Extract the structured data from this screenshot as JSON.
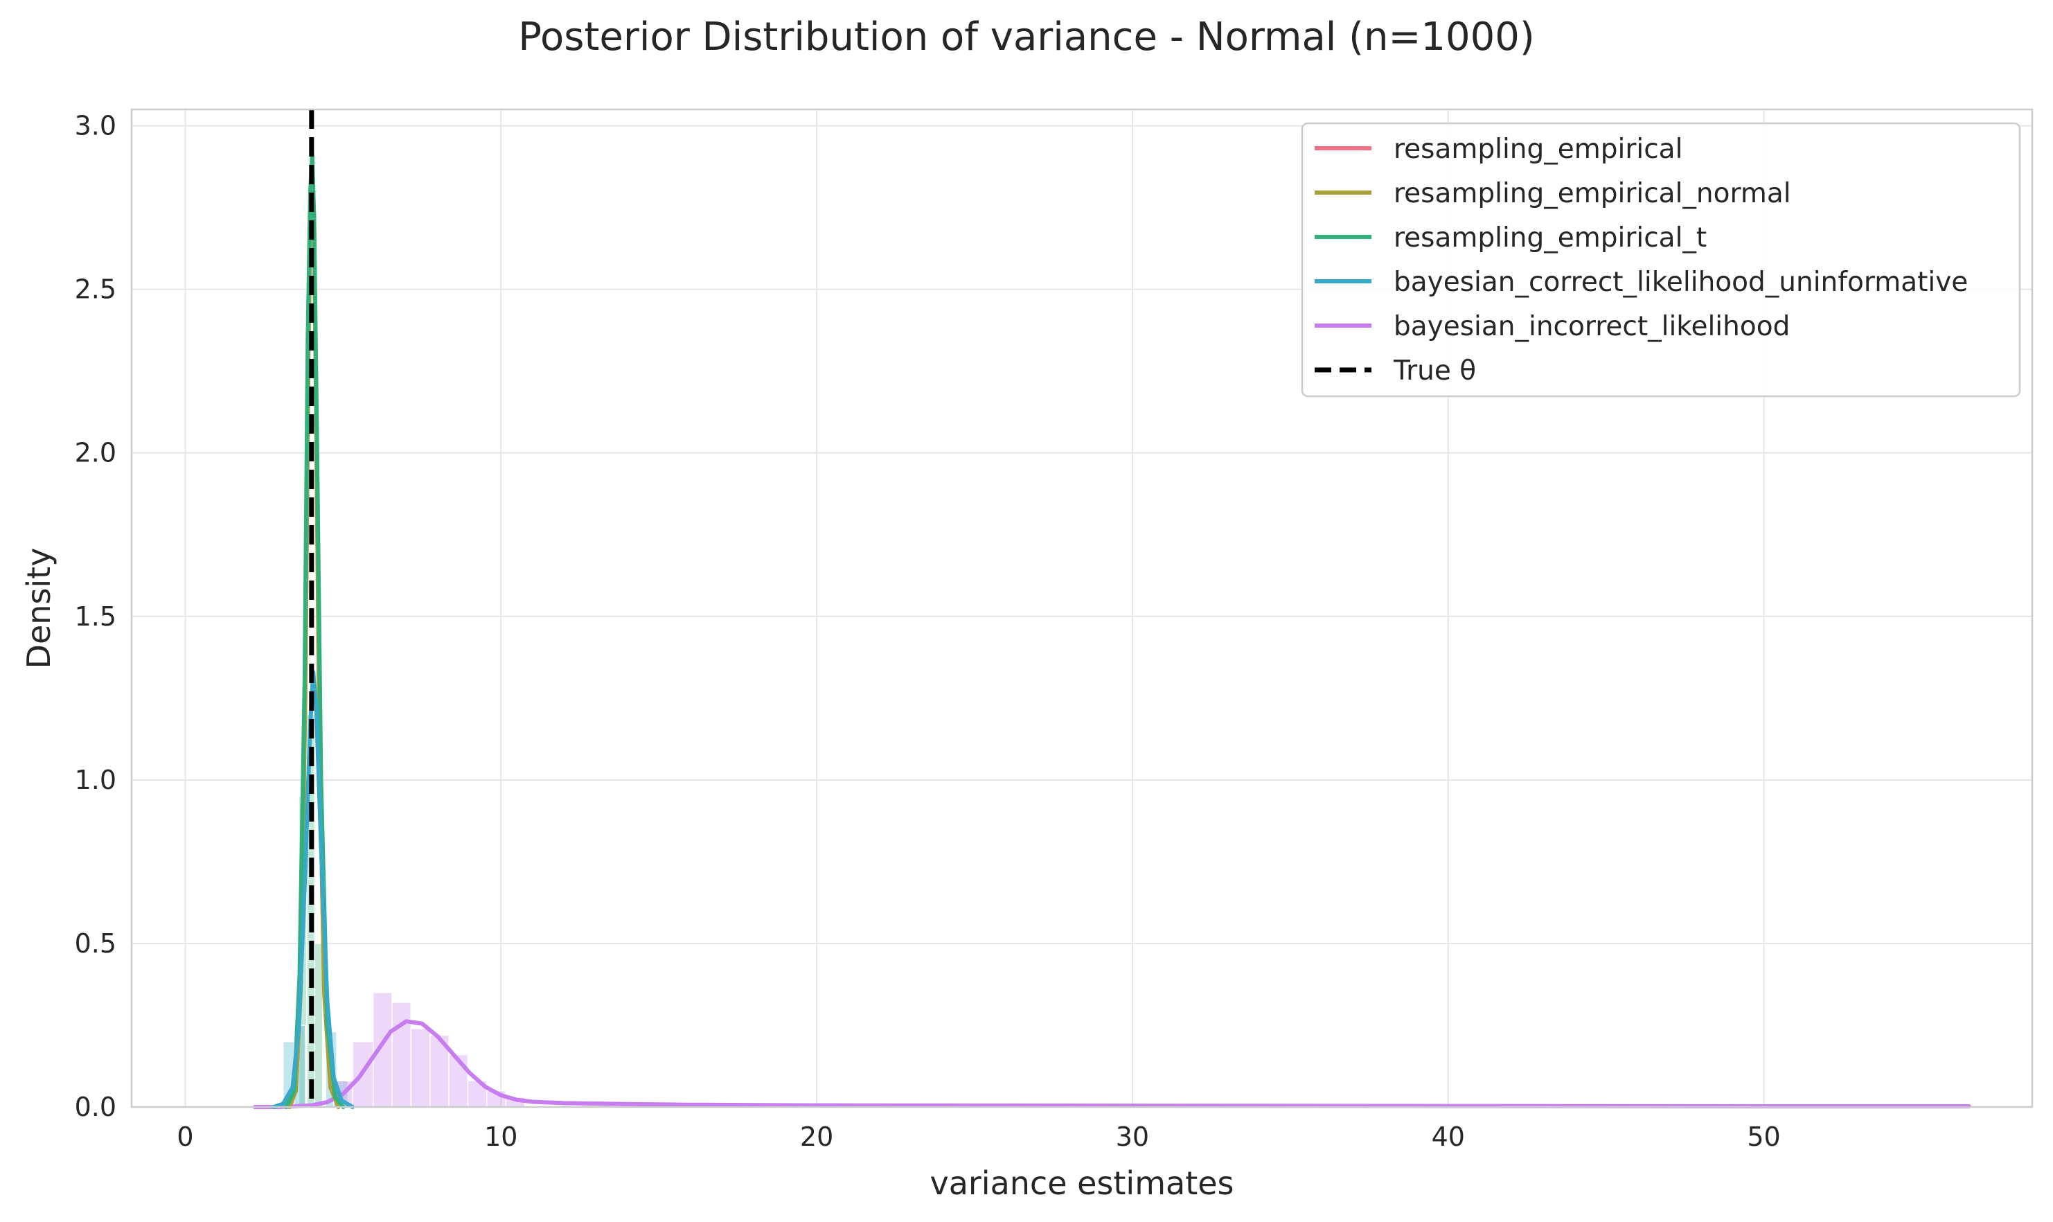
{
  "chart_data": {
    "type": "line",
    "title": "Posterior Distribution of variance - Normal (n=1000)",
    "xlabel": "variance estimates",
    "ylabel": "Density",
    "xlim": [
      -1.7,
      58.5
    ],
    "ylim": [
      0,
      3.05
    ],
    "x_ticks": [
      0,
      10,
      20,
      30,
      40,
      50
    ],
    "y_ticks": [
      0.0,
      0.5,
      1.0,
      1.5,
      2.0,
      2.5,
      3.0
    ],
    "x_tick_labels": [
      "0",
      "10",
      "20",
      "30",
      "40",
      "50"
    ],
    "y_tick_labels": [
      "0.0",
      "0.5",
      "1.0",
      "1.5",
      "2.0",
      "2.5",
      "3.0"
    ],
    "grid": true,
    "legend_position": "top-right",
    "true_theta": 4.0,
    "series": [
      {
        "name": "resampling_empirical",
        "color": "#f07185",
        "kde": [
          [
            3.3,
            0.0
          ],
          [
            3.5,
            0.05
          ],
          [
            3.65,
            0.35
          ],
          [
            3.8,
            1.25
          ],
          [
            3.9,
            2.3
          ],
          [
            3.97,
            2.78
          ],
          [
            4.02,
            2.9
          ],
          [
            4.08,
            2.7
          ],
          [
            4.15,
            2.1
          ],
          [
            4.25,
            1.1
          ],
          [
            4.4,
            0.35
          ],
          [
            4.6,
            0.06
          ],
          [
            4.85,
            0.0
          ]
        ],
        "hist": []
      },
      {
        "name": "resampling_empirical_normal",
        "color": "#a8a038",
        "kde": [
          [
            3.3,
            0.0
          ],
          [
            3.5,
            0.05
          ],
          [
            3.65,
            0.35
          ],
          [
            3.8,
            1.25
          ],
          [
            3.9,
            2.3
          ],
          [
            3.97,
            2.78
          ],
          [
            4.02,
            2.9
          ],
          [
            4.08,
            2.7
          ],
          [
            4.15,
            2.1
          ],
          [
            4.25,
            1.1
          ],
          [
            4.4,
            0.35
          ],
          [
            4.6,
            0.06
          ],
          [
            4.85,
            0.0
          ]
        ],
        "hist": []
      },
      {
        "name": "resampling_empirical_t",
        "color": "#33b07a",
        "kde": [
          [
            3.2,
            0.0
          ],
          [
            3.45,
            0.05
          ],
          [
            3.62,
            0.4
          ],
          [
            3.78,
            1.3
          ],
          [
            3.88,
            2.35
          ],
          [
            3.96,
            2.8
          ],
          [
            4.02,
            2.91
          ],
          [
            4.08,
            2.72
          ],
          [
            4.17,
            2.05
          ],
          [
            4.3,
            1.0
          ],
          [
            4.5,
            0.25
          ],
          [
            4.75,
            0.03
          ],
          [
            5.0,
            0.0
          ]
        ],
        "hist": [
          {
            "x0": 3.6,
            "x1": 3.85,
            "y": 0.95
          },
          {
            "x0": 3.85,
            "x1": 4.1,
            "y": 1.2
          },
          {
            "x0": 4.1,
            "x1": 4.35,
            "y": 0.5
          }
        ]
      },
      {
        "name": "bayesian_correct_likelihood_uninformative",
        "color": "#37a8c8",
        "kde": [
          [
            2.8,
            0.0
          ],
          [
            3.1,
            0.01
          ],
          [
            3.4,
            0.06
          ],
          [
            3.6,
            0.25
          ],
          [
            3.8,
            0.72
          ],
          [
            3.95,
            1.15
          ],
          [
            4.05,
            1.33
          ],
          [
            4.15,
            1.22
          ],
          [
            4.3,
            0.8
          ],
          [
            4.5,
            0.32
          ],
          [
            4.7,
            0.09
          ],
          [
            4.95,
            0.02
          ],
          [
            5.3,
            0.0
          ]
        ],
        "hist": [
          {
            "x0": 3.1,
            "x1": 3.45,
            "y": 0.2
          },
          {
            "x0": 3.45,
            "x1": 3.8,
            "y": 0.25
          },
          {
            "x0": 4.45,
            "x1": 4.8,
            "y": 0.23
          },
          {
            "x0": 4.8,
            "x1": 5.15,
            "y": 0.08
          }
        ]
      },
      {
        "name": "bayesian_incorrect_likelihood",
        "color": "#c77df0",
        "kde": [
          [
            2.2,
            0.0
          ],
          [
            3.0,
            0.0
          ],
          [
            4.0,
            0.005
          ],
          [
            4.5,
            0.015
          ],
          [
            5.0,
            0.04
          ],
          [
            5.5,
            0.09
          ],
          [
            6.0,
            0.16
          ],
          [
            6.5,
            0.23
          ],
          [
            7.0,
            0.262
          ],
          [
            7.5,
            0.255
          ],
          [
            8.0,
            0.215
          ],
          [
            8.5,
            0.16
          ],
          [
            9.0,
            0.105
          ],
          [
            9.5,
            0.062
          ],
          [
            10.0,
            0.036
          ],
          [
            10.5,
            0.022
          ],
          [
            11.0,
            0.016
          ],
          [
            12.0,
            0.012
          ],
          [
            14.0,
            0.009
          ],
          [
            16.0,
            0.007
          ],
          [
            20.0,
            0.005
          ],
          [
            30.0,
            0.004
          ],
          [
            40.0,
            0.003
          ],
          [
            50.0,
            0.002
          ],
          [
            56.5,
            0.002
          ]
        ],
        "hist": [
          {
            "x0": 4.7,
            "x1": 5.3,
            "y": 0.08
          },
          {
            "x0": 5.3,
            "x1": 5.95,
            "y": 0.2
          },
          {
            "x0": 5.95,
            "x1": 6.55,
            "y": 0.35
          },
          {
            "x0": 6.55,
            "x1": 7.15,
            "y": 0.32
          },
          {
            "x0": 7.15,
            "x1": 7.75,
            "y": 0.24
          },
          {
            "x0": 7.75,
            "x1": 8.35,
            "y": 0.22
          },
          {
            "x0": 8.35,
            "x1": 8.95,
            "y": 0.16
          },
          {
            "x0": 8.95,
            "x1": 9.55,
            "y": 0.08
          },
          {
            "x0": 9.55,
            "x1": 10.15,
            "y": 0.05
          },
          {
            "x0": 10.15,
            "x1": 10.75,
            "y": 0.03
          }
        ]
      }
    ],
    "reference_line": {
      "name": "True θ",
      "x": 4.0,
      "color": "#000000",
      "style": "dashed"
    }
  }
}
